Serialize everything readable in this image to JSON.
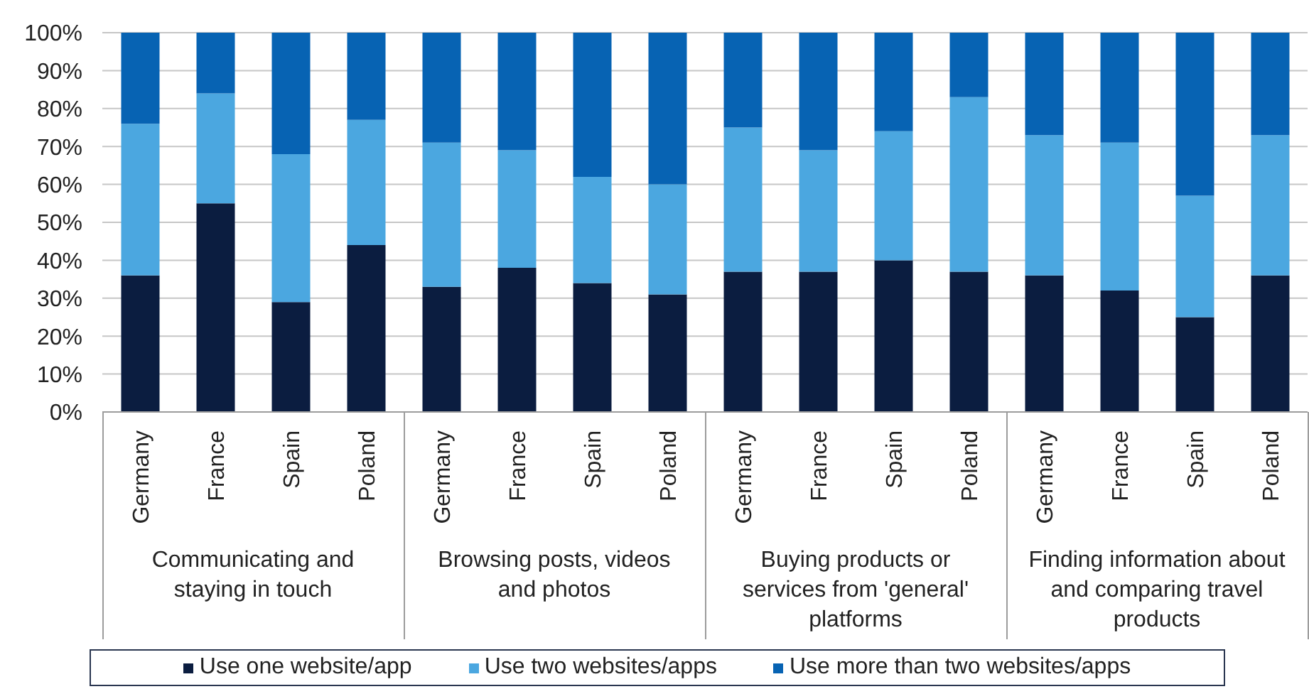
{
  "chart_data": [
    {
      "type": "bar",
      "stacked": true,
      "categories": [
        "Germany",
        "France",
        "Spain",
        "Poland"
      ],
      "xlabel": "Communicating and staying in touch",
      "series": [
        {
          "name": "Use one website/app",
          "color": "#0b1d40",
          "values": [
            36,
            55,
            29,
            44
          ]
        },
        {
          "name": "Use two websites/apps",
          "color": "#4ba7e0",
          "values": [
            40,
            29,
            39,
            33
          ]
        },
        {
          "name": "Use more than two websites/apps",
          "color": "#0763b3",
          "values": [
            24,
            16,
            32,
            23
          ]
        }
      ],
      "ylim": [
        0,
        100
      ],
      "yticks": [
        {
          "value": 0,
          "label": "0%"
        },
        {
          "value": 10,
          "label": "10%"
        },
        {
          "value": 20,
          "label": "20%"
        },
        {
          "value": 30,
          "label": "30%"
        },
        {
          "value": 40,
          "label": "40%"
        },
        {
          "value": 50,
          "label": "50%"
        },
        {
          "value": 60,
          "label": "60%"
        },
        {
          "value": 70,
          "label": "70%"
        },
        {
          "value": 80,
          "label": "80%"
        },
        {
          "value": 90,
          "label": "90%"
        },
        {
          "value": 100,
          "label": "100%"
        }
      ],
      "grid": "y",
      "legend": "bottom"
    },
    {
      "type": "bar",
      "stacked": true,
      "categories": [
        "Germany",
        "France",
        "Spain",
        "Poland"
      ],
      "xlabel": "Browsing posts, videos and photos",
      "series": [
        {
          "color": "#0b1d40",
          "values": [
            33,
            38,
            34,
            31
          ]
        },
        {
          "color": "#4ba7e0",
          "values": [
            38,
            31,
            28,
            29
          ]
        },
        {
          "color": "#0763b3",
          "values": [
            29,
            31,
            38,
            40
          ]
        }
      ],
      "ylim": [
        0,
        100
      ],
      "yticks": [
        0,
        10,
        20,
        30,
        40,
        50,
        60,
        70,
        80,
        90,
        100
      ],
      "grid": "y",
      "tick_labels": "x"
    },
    {
      "type": "bar",
      "stacked": true,
      "categories": [
        "Germany",
        "France",
        "Spain",
        "Poland"
      ],
      "xlabel": "Buying products or services from 'general' platforms",
      "series": [
        {
          "color": "#0b1d40",
          "values": [
            37,
            37,
            40,
            37
          ]
        },
        {
          "color": "#4ba7e0",
          "values": [
            38,
            32,
            34,
            46
          ]
        },
        {
          "color": "#0763b3",
          "values": [
            25,
            31,
            26,
            17
          ]
        }
      ],
      "ylim": [
        0,
        100
      ],
      "yticks": [
        0,
        10,
        20,
        30,
        40,
        50,
        60,
        70,
        80,
        90,
        100
      ],
      "grid": "y",
      "tick_labels": "x"
    },
    {
      "type": "bar",
      "stacked": true,
      "categories": [
        "Germany",
        "France",
        "Spain",
        "Poland"
      ],
      "xlabel": "Finding information about and comparing travel products",
      "series": [
        {
          "color": "#0b1d40",
          "values": [
            36,
            32,
            25,
            36
          ]
        },
        {
          "color": "#4ba7e0",
          "values": [
            37,
            39,
            32,
            37
          ]
        },
        {
          "color": "#0763b3",
          "values": [
            27,
            29,
            43,
            27
          ]
        }
      ],
      "ylim": [
        0,
        100
      ],
      "yticks": [
        0,
        10,
        20,
        30,
        40,
        50,
        60,
        70,
        80,
        90,
        100
      ],
      "grid": "y",
      "tick_labels": "x"
    }
  ]
}
